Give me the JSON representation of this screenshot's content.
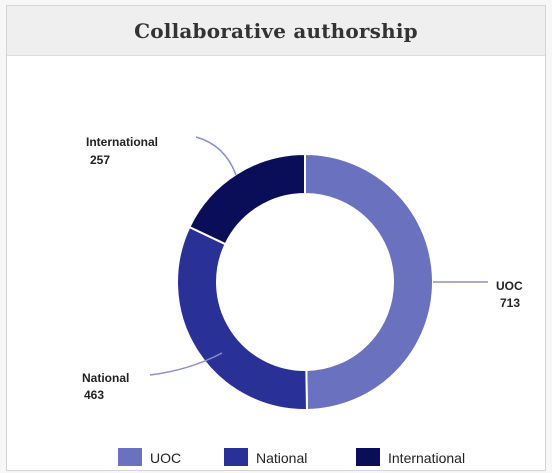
{
  "header": {
    "title": "Collaborative authorship"
  },
  "chart_data": {
    "type": "pie",
    "variant": "donut",
    "title": "Collaborative authorship",
    "categories": [
      "UOC",
      "National",
      "International"
    ],
    "values": [
      713,
      463,
      257
    ],
    "colors": [
      "#6a72bf",
      "#2a3196",
      "#0a0d57"
    ],
    "start_angle_deg": 0,
    "direction": "clockwise",
    "legend": {
      "position": "bottom",
      "items": [
        "UOC",
        "National",
        "International"
      ]
    },
    "data_labels": [
      {
        "name": "UOC",
        "value": "713"
      },
      {
        "name": "National",
        "value": "463"
      },
      {
        "name": "International",
        "value": "257"
      }
    ]
  }
}
